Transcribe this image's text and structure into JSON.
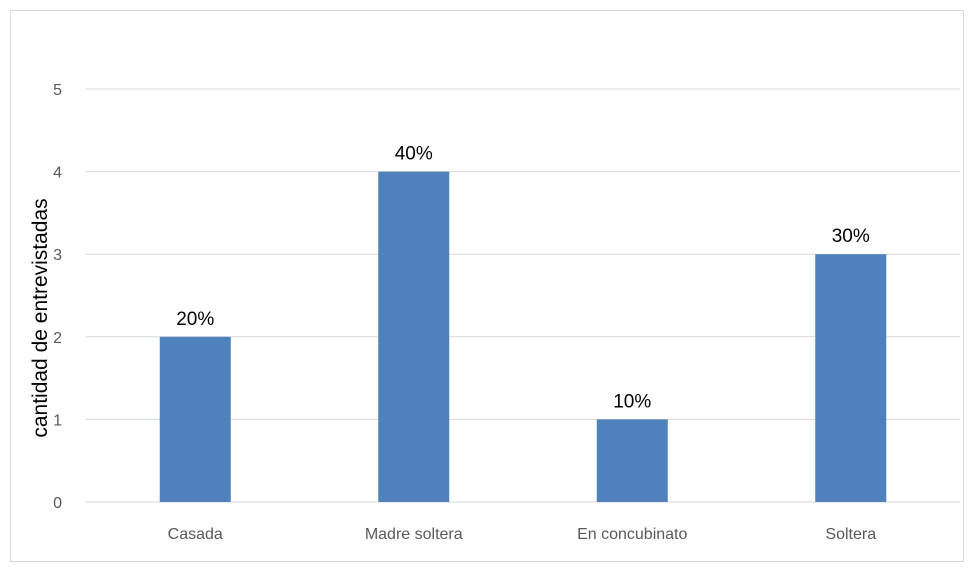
{
  "chart_data": {
    "type": "bar",
    "title": "",
    "xlabel": "",
    "ylabel": "cantidad de entrevistadas",
    "categories": [
      "Casada",
      "Madre soltera",
      "En concubinato",
      "Soltera"
    ],
    "values": [
      2,
      4,
      1,
      3
    ],
    "data_labels": [
      "20%",
      "40%",
      "10%",
      "30%"
    ],
    "ylim": [
      0,
      5
    ],
    "yticks": [
      "0",
      "1",
      "2",
      "3",
      "4",
      "5"
    ],
    "grid": true,
    "legend": "none",
    "colors": {
      "bar": "#4f81bd",
      "grid": "#d9d9d9",
      "axis_text": "#595959",
      "label_text": "#000000"
    }
  }
}
